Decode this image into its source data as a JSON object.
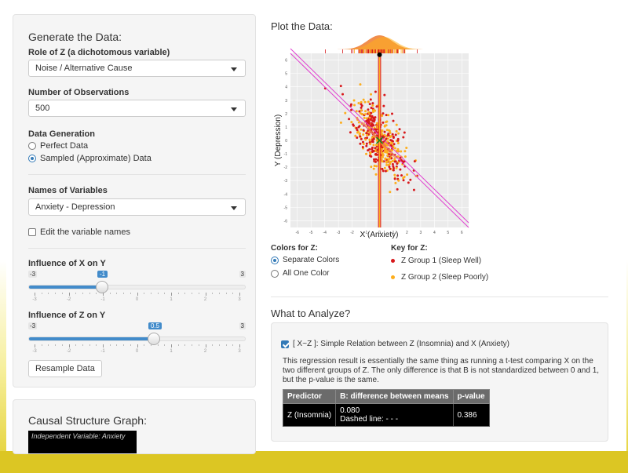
{
  "left": {
    "generate_title": "Generate the Data:",
    "role_label": "Role of Z (a dichotomous variable)",
    "role_value": "Noise / Alternative Cause",
    "obs_label": "Number of Observations",
    "obs_value": "500",
    "datagen_label": "Data Generation",
    "datagen_options": [
      "Perfect Data",
      "Sampled (Approximate) Data"
    ],
    "datagen_selected": 1,
    "names_label": "Names of Variables",
    "names_value": "Anxiety - Depression",
    "edit_label": "Edit the variable names",
    "x_slider": {
      "label": "Influence of X on Y",
      "min": "-3",
      "max": "3",
      "value": "-1",
      "ticks": [
        "-3",
        "-2",
        "-1",
        "0",
        "1",
        "2",
        "3"
      ]
    },
    "z_slider": {
      "label": "Influence of Z on Y",
      "min": "-3",
      "max": "3",
      "value": "0.5",
      "ticks": [
        "-3",
        "-2",
        "-1",
        "0",
        "1",
        "2",
        "3"
      ]
    },
    "resample_label": "Resample Data",
    "causal_title": "Causal Structure Graph:",
    "causal_box_text": "Independent Variable: Anxiety"
  },
  "plot": {
    "title": "Plot the Data:",
    "colors_label": "Colors for Z:",
    "color_options": [
      "Separate Colors",
      "All One Color"
    ],
    "key_label": "Key for Z:",
    "key_items": [
      {
        "label": "Z Group 1 (Sleep Well)",
        "color": "#d7191c"
      },
      {
        "label": "Z Group 2 (Sleep Poorly)",
        "color": "#fdae1d"
      }
    ]
  },
  "chart_data": {
    "type": "scatter",
    "xlabel": "X (Anxiety)",
    "ylabel": "Y (Depression)",
    "xlim": [
      -6.5,
      6.5
    ],
    "ylim": [
      -6.5,
      6.5
    ],
    "xticks": [
      "-6",
      "-5",
      "-4",
      "-3",
      "-2",
      "-1",
      "0",
      "1",
      "2",
      "3",
      "4",
      "5",
      "6"
    ],
    "yticks": [
      "6",
      "5",
      "4",
      "3",
      "2",
      "1",
      "0",
      "-1",
      "-2",
      "-3",
      "-4",
      "-5",
      "-6"
    ],
    "regression_slope": -1,
    "grid": true,
    "n_points": 500,
    "series": [
      {
        "color": "#d7191c"
      },
      {
        "color": "#fdae1d"
      }
    ]
  },
  "analyze": {
    "title": "What to Analyze?",
    "check_label": "[ X~Z ]: Simple Relation between Z (Insomnia) and X (Anxiety)",
    "description": "This regression result is essentially the same thing as running a t-test comparing X on the two different groups of Z. The only difference is that B is not standardized between 0 and 1, but the p-value is the same.",
    "table": {
      "headers": [
        "Predictor",
        "B: difference between means",
        "p-value"
      ],
      "predictor": "Z (Insomnia)",
      "b_value": "0.080",
      "b_note": "Dashed line: - - -",
      "p_value": "0.386"
    }
  }
}
